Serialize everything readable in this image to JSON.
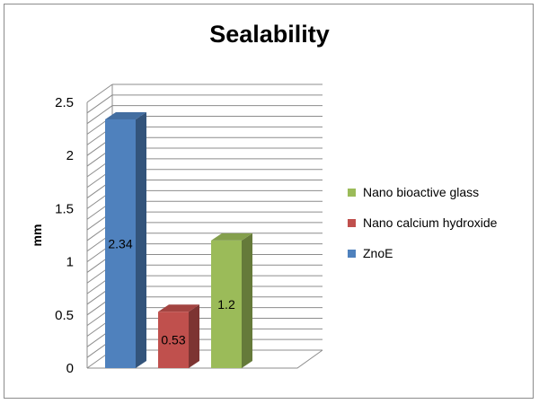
{
  "chart_data": {
    "type": "bar",
    "title": "Sealability",
    "xlabel": "",
    "ylabel": "mm",
    "ylim": [
      0,
      2.5
    ],
    "yticks": [
      0,
      0.5,
      1,
      1.5,
      2,
      2.5
    ],
    "ytick_labels": [
      "0",
      "0.5",
      "1",
      "1.5",
      "2",
      "2.5"
    ],
    "grid": true,
    "legend_position": "right",
    "series": [
      {
        "name": "ZnoE",
        "value": 2.34,
        "label": "2.34",
        "color": "#4f81bd"
      },
      {
        "name": "Nano calcium hydroxide",
        "value": 0.53,
        "label": "0.53",
        "color": "#c0504d"
      },
      {
        "name": "Nano bioactive glass",
        "value": 1.2,
        "label": "1.2",
        "color": "#9bbb59"
      }
    ],
    "legend_order": [
      "Nano bioactive glass",
      "Nano calcium hydroxide",
      "ZnoE"
    ]
  }
}
